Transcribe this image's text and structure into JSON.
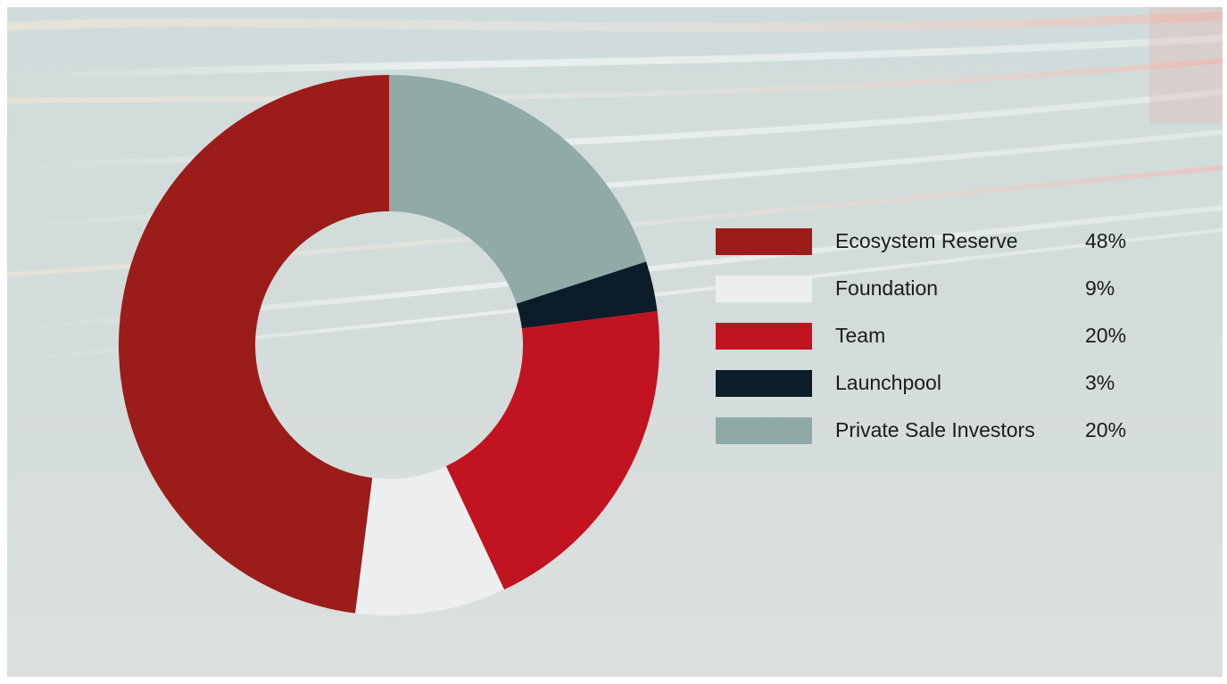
{
  "chart_data": {
    "type": "pie",
    "title": "",
    "categories": [
      "Ecosystem Reserve",
      "Foundation",
      "Team",
      "Launchpool",
      "Private Sale Investors"
    ],
    "values": [
      48,
      9,
      20,
      3,
      20
    ],
    "value_labels": [
      "48%",
      "9%",
      "20%",
      "3%",
      "20%"
    ],
    "colors": [
      "#9b1c18",
      "#eceeef",
      "#c11420",
      "#0c1c28",
      "#8faaa7"
    ],
    "slice_order_clockwise_from_top": [
      "Private Sale Investors",
      "Launchpool",
      "Team",
      "Foundation",
      "Ecosystem Reserve"
    ],
    "donut": true,
    "legend_position": "right"
  },
  "legend": {
    "items": [
      {
        "label": "Ecosystem Reserve",
        "value": "48%",
        "color": "#9b1c18"
      },
      {
        "label": "Foundation",
        "value": "9%",
        "color": "#eceeef"
      },
      {
        "label": "Team",
        "value": "20%",
        "color": "#c11420"
      },
      {
        "label": "Launchpool",
        "value": "3%",
        "color": "#0c1c28"
      },
      {
        "label": "Private Sale Investors",
        "value": "20%",
        "color": "#8faaa7"
      }
    ]
  }
}
